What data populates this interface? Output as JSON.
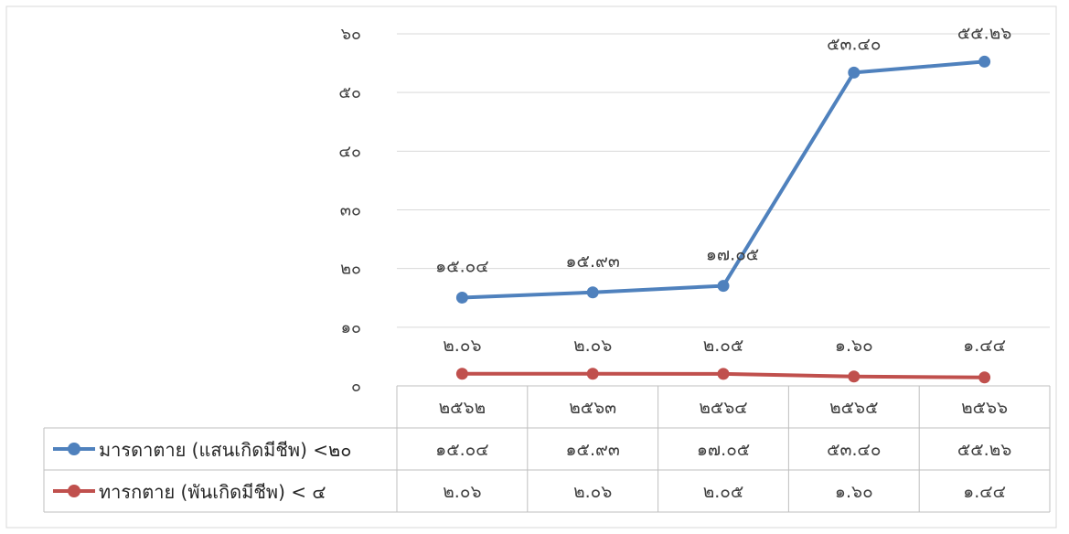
{
  "chart_data": {
    "type": "line",
    "title": "",
    "xlabel": "",
    "ylabel": "",
    "categories": [
      "๒๕๖๒",
      "๒๕๖๓",
      "๒๕๖๔",
      "๒๕๖๕",
      "๒๕๖๖"
    ],
    "ylim": [
      0,
      60
    ],
    "yticks": [
      0,
      10,
      20,
      30,
      40,
      50,
      60
    ],
    "ytick_labels": [
      "๐",
      "๑๐",
      "๒๐",
      "๓๐",
      "๔๐",
      "๕๐",
      "๖๐"
    ],
    "grid": true,
    "legend_position": "data-table-left",
    "series": [
      {
        "name": "มารดาตาย (แสนเกิดมีชีพ) <๒๐",
        "values": [
          15.04,
          15.93,
          17.05,
          53.4,
          55.26
        ],
        "labels": [
          "๑๕.๐๔",
          "๑๕.๙๓",
          "๑๗.๐๕",
          "๕๓.๔๐",
          "๕๕.๒๖"
        ],
        "color": "#4f81bd"
      },
      {
        "name": "ทารกตาย (พันเกิดมีชีพ) < ๔",
        "values": [
          2.06,
          2.06,
          2.05,
          1.6,
          1.44
        ],
        "labels": [
          "๒.๐๖",
          "๒.๐๖",
          "๒.๐๕",
          "๑.๖๐",
          "๑.๔๔"
        ],
        "color": "#c0504d"
      }
    ]
  }
}
